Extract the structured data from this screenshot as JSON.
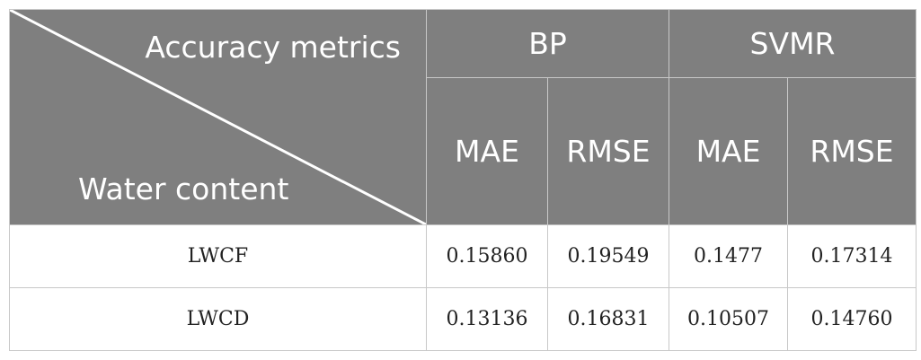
{
  "table": {
    "corner": {
      "top_label": "Accuracy metrics",
      "bottom_label": "Water content"
    },
    "groups": [
      "BP",
      "SVMR"
    ],
    "subheaders": [
      "MAE",
      "RMSE",
      "MAE",
      "RMSE"
    ],
    "rows": [
      {
        "label": "LWCF",
        "values": [
          "0.15860",
          "0.19549",
          "0.1477",
          "0.17314"
        ]
      },
      {
        "label": "LWCD",
        "values": [
          "0.13136",
          "0.16831",
          "0.10507",
          "0.14760"
        ]
      }
    ]
  },
  "colors": {
    "header_bg": "#7f7f7f",
    "header_text": "#ffffff",
    "border": "#c8c8c8"
  }
}
